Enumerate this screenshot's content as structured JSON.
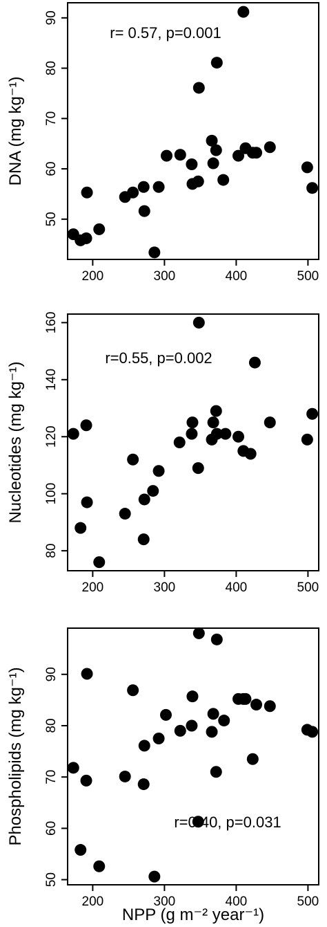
{
  "figure": {
    "xlabel": "NPP (g m⁻² year⁻¹)",
    "point_color": "#000000",
    "axis_color": "#000000"
  },
  "chart_data": [
    {
      "type": "scatter",
      "ylabel": "DNA (mg kg⁻¹)",
      "annotation": "r= 0.57, p=0.001",
      "xlim": [
        165,
        515
      ],
      "ylim": [
        42,
        93
      ],
      "xticks": [
        200,
        300,
        400,
        500
      ],
      "yticks": [
        50,
        60,
        70,
        80,
        90
      ],
      "points": [
        [
          173,
          47.0
        ],
        [
          183,
          45.8
        ],
        [
          191,
          46.2
        ],
        [
          192,
          55.3
        ],
        [
          209,
          48.0
        ],
        [
          245,
          54.4
        ],
        [
          256,
          55.3
        ],
        [
          271,
          56.4
        ],
        [
          272,
          51.6
        ],
        [
          286,
          43.4
        ],
        [
          292,
          56.4
        ],
        [
          303,
          62.6
        ],
        [
          322,
          62.8
        ],
        [
          338,
          60.9
        ],
        [
          339,
          57.0
        ],
        [
          347,
          57.5
        ],
        [
          348,
          76.1
        ],
        [
          366,
          65.6
        ],
        [
          368,
          61.1
        ],
        [
          372,
          63.7
        ],
        [
          373,
          81.1
        ],
        [
          382,
          57.8
        ],
        [
          403,
          62.6
        ],
        [
          410,
          91.2
        ],
        [
          413,
          64.1
        ],
        [
          423,
          63.2
        ],
        [
          428,
          63.2
        ],
        [
          447,
          64.3
        ],
        [
          499,
          60.3
        ],
        [
          506,
          56.2
        ]
      ]
    },
    {
      "type": "scatter",
      "ylabel": "Nucleotides (mg kg⁻¹)",
      "annotation": "r=0.55, p=0.002",
      "xlim": [
        165,
        515
      ],
      "ylim": [
        73,
        163
      ],
      "xticks": [
        200,
        300,
        400,
        500
      ],
      "yticks": [
        80,
        100,
        120,
        140,
        160
      ],
      "points": [
        [
          173,
          121
        ],
        [
          183,
          88
        ],
        [
          191,
          124
        ],
        [
          192,
          97
        ],
        [
          209,
          76
        ],
        [
          245,
          93
        ],
        [
          256,
          112
        ],
        [
          271,
          84
        ],
        [
          272,
          98
        ],
        [
          284,
          101
        ],
        [
          292,
          108
        ],
        [
          321,
          118
        ],
        [
          338,
          121
        ],
        [
          339,
          125
        ],
        [
          347,
          109
        ],
        [
          348,
          160
        ],
        [
          366,
          119
        ],
        [
          368,
          125
        ],
        [
          372,
          129
        ],
        [
          373,
          121
        ],
        [
          385,
          121
        ],
        [
          403,
          120
        ],
        [
          410,
          115
        ],
        [
          420,
          114
        ],
        [
          426,
          146
        ],
        [
          447,
          125
        ],
        [
          499,
          119
        ],
        [
          506,
          128
        ]
      ]
    },
    {
      "type": "scatter",
      "ylabel": "Phospholipids (mg kg⁻¹)",
      "annotation": "r=0.40, p=0.031",
      "xlim": [
        165,
        515
      ],
      "ylim": [
        49,
        99
      ],
      "xticks": [
        200,
        300,
        400,
        500
      ],
      "yticks": [
        50,
        60,
        70,
        80,
        90
      ],
      "points": [
        [
          173,
          71.8
        ],
        [
          183,
          55.8
        ],
        [
          191,
          69.3
        ],
        [
          192,
          90.1
        ],
        [
          209,
          52.6
        ],
        [
          245,
          70.1
        ],
        [
          256,
          86.9
        ],
        [
          271,
          68.6
        ],
        [
          272,
          76.1
        ],
        [
          286,
          50.6
        ],
        [
          292,
          77.5
        ],
        [
          302,
          82.1
        ],
        [
          322,
          79.0
        ],
        [
          338,
          80.0
        ],
        [
          339,
          85.7
        ],
        [
          347,
          61.3
        ],
        [
          348,
          98.0
        ],
        [
          366,
          78.8
        ],
        [
          368,
          82.3
        ],
        [
          372,
          71.0
        ],
        [
          373,
          96.8
        ],
        [
          383,
          81.0
        ],
        [
          403,
          85.2
        ],
        [
          410,
          85.2
        ],
        [
          413,
          85.2
        ],
        [
          423,
          73.5
        ],
        [
          428,
          84.1
        ],
        [
          447,
          83.8
        ],
        [
          499,
          79.2
        ],
        [
          506,
          78.8
        ]
      ]
    }
  ]
}
